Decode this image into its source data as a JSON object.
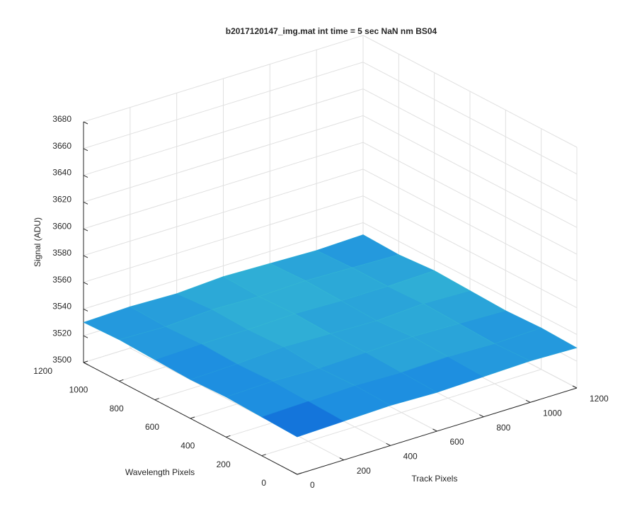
{
  "chart_data": {
    "type": "surface",
    "title": "b2017120147_img.mat int time = 5 sec  NaN nm BS04",
    "x_label": "Track Pixels",
    "y_label": "Wavelength Pixels",
    "z_label": "Signal (ADU)",
    "x": [
      0,
      200,
      400,
      600,
      800,
      1000,
      1200
    ],
    "y": [
      0,
      200,
      400,
      600,
      800,
      1000,
      1200
    ],
    "z": [
      [
        3528,
        3529,
        3530,
        3529,
        3530,
        3531,
        3530
      ],
      [
        3529,
        3530,
        3531,
        3530,
        3531,
        3530,
        3531
      ],
      [
        3530,
        3531,
        3530,
        3531,
        3532,
        3531,
        3530
      ],
      [
        3529,
        3530,
        3532,
        3531,
        3530,
        3532,
        3531
      ],
      [
        3530,
        3531,
        3531,
        3532,
        3531,
        3531,
        3532
      ],
      [
        3531,
        3530,
        3532,
        3531,
        3532,
        3531,
        3530
      ],
      [
        3530,
        3531,
        3530,
        3532,
        3531,
        3530,
        3531
      ]
    ],
    "xlim": [
      0,
      1200
    ],
    "ylim": [
      0,
      1200
    ],
    "zlim": [
      3500,
      3680
    ],
    "xticks": [
      0,
      200,
      400,
      600,
      800,
      1000,
      1200
    ],
    "yticks": [
      0,
      200,
      400,
      600,
      800,
      1000,
      1200
    ],
    "zticks": [
      3500,
      3520,
      3540,
      3560,
      3580,
      3600,
      3620,
      3640,
      3660,
      3680
    ],
    "colormap": [
      "#0a5ad6",
      "#1e8fe0",
      "#35b8d2"
    ],
    "grid": true
  }
}
